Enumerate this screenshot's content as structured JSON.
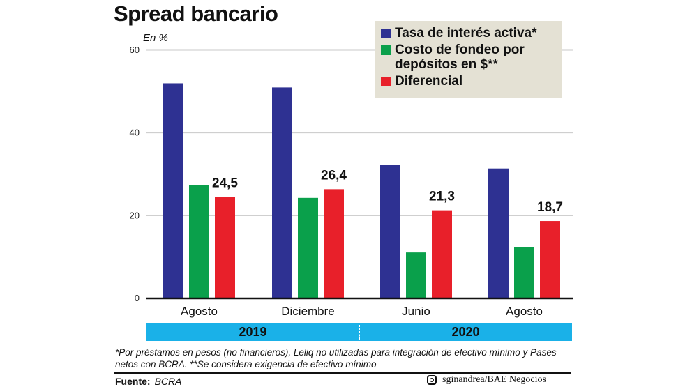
{
  "title": "Spread bancario",
  "unit": "En %",
  "legend": [
    {
      "label": "Tasa de interés activa*",
      "color": "#2e3192"
    },
    {
      "label": "Costo de fondeo por depósitos en $**",
      "color": "#0aa04b"
    },
    {
      "label": "Diferencial",
      "color": "#e8202a"
    }
  ],
  "years": {
    "y2019": "2019",
    "y2020": "2020",
    "band_color": "#1ab1e8"
  },
  "footnote": "*Por préstamos en pesos (no financieros), Leliq no utilizadas para integración de efectivo mínimo y Pases netos con BCRA. **Se considera exigencia de efectivo mínimo",
  "source": {
    "label": "Fuente:",
    "value": "BCRA"
  },
  "credit": "sginandrea/BAE Negocios",
  "chart_data": {
    "type": "bar",
    "title": "Spread bancario",
    "ylabel": "En %",
    "ylim": [
      0,
      60
    ],
    "yticks": [
      "0",
      "20",
      "40",
      "60"
    ],
    "grid": true,
    "legend_position": "top-right",
    "categories": [
      "Agosto",
      "Diciembre",
      "Junio",
      "Agosto"
    ],
    "series": [
      {
        "name": "Tasa de interés activa*",
        "color": "#2e3192",
        "values": [
          52,
          51,
          32.3,
          31.4
        ]
      },
      {
        "name": "Costo de fondeo por depósitos en $**",
        "color": "#0aa04b",
        "values": [
          27.4,
          24.3,
          11.1,
          12.4
        ]
      },
      {
        "name": "Diferencial",
        "color": "#e8202a",
        "values": [
          24.5,
          26.4,
          21.3,
          18.7
        ]
      }
    ],
    "data_labels": [
      "24,5",
      "26,4",
      "21,3",
      "18,7"
    ]
  }
}
